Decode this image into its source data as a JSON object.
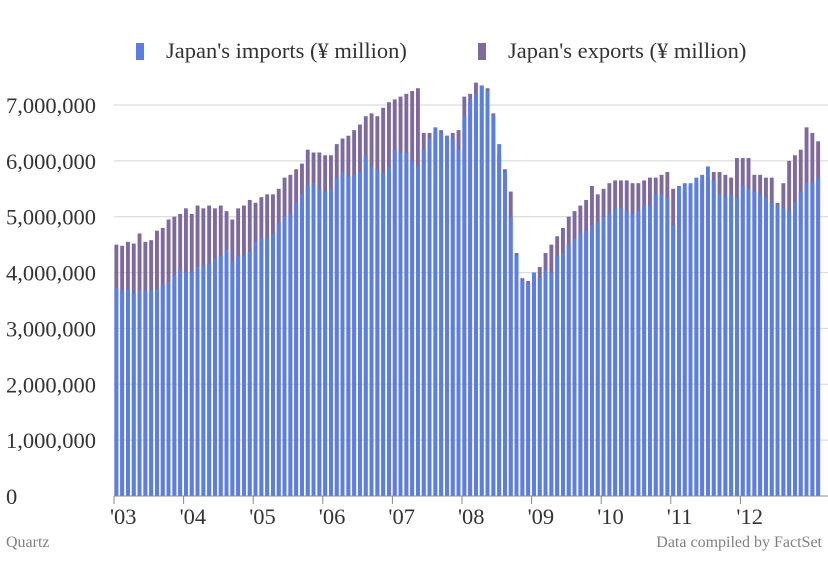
{
  "colors": {
    "imports": "#5B7FE0",
    "exports": "#7F6A9C",
    "grid": "#d4d4d4",
    "axis_text": "#333333"
  },
  "source_left": "Quartz",
  "source_right": "Data compiled by FactSet",
  "chart_data": {
    "type": "bar",
    "title": "",
    "xlabel": "",
    "ylabel": "",
    "ylim": [
      0,
      7000000
    ],
    "grid": true,
    "legend_position": "top",
    "y_ticks": [
      "0",
      "1,000,000",
      "2,000,000",
      "3,000,000",
      "4,000,000",
      "5,000,000",
      "6,000,000",
      "7,000,000"
    ],
    "x_ticks": [
      "'03",
      "'04",
      "'05",
      "'06",
      "'07",
      "'08",
      "'09",
      "'10",
      "'11",
      "'12"
    ],
    "x_start": "2003-01",
    "x_end": "2012-10",
    "series": [
      {
        "name": "Japan's imports (¥ million)",
        "values": [
          3730000,
          3680000,
          3700000,
          3620000,
          3680000,
          3670000,
          3680000,
          3700000,
          3780000,
          3830000,
          3950000,
          4050000,
          4000000,
          4020000,
          4100000,
          4130000,
          4150000,
          4250000,
          4300000,
          4420000,
          4180000,
          4300000,
          4290000,
          4370000,
          4550000,
          4600000,
          4620000,
          4700000,
          4900000,
          5000000,
          5050000,
          5250000,
          5400000,
          5550000,
          5600000,
          5500000,
          5450000,
          5500000,
          5700000,
          5800000,
          5720000,
          5750000,
          5800000,
          6100000,
          5900000,
          5850000,
          5780000,
          5900000,
          6200000,
          6150000,
          6150000,
          6000000,
          5900000,
          6200000,
          6400000,
          6600000,
          6500000,
          6450000,
          6400000,
          6200000,
          6800000,
          7100000,
          7200000,
          7350000,
          7250000,
          6800000,
          6300000,
          5800000,
          5000000,
          4300000,
          3850000,
          3800000,
          4000000,
          3900000,
          4050000,
          4000000,
          4300000,
          4350000,
          4500000,
          4600000,
          4700000,
          4750000,
          4850000,
          4900000,
          5000000,
          5050000,
          5150000,
          5150000,
          5100000,
          5050000,
          5100000,
          5200000,
          5200000,
          5400000,
          5400000,
          5350000,
          4850000,
          5550000,
          5600000,
          5600000,
          5700000,
          5750000,
          5900000,
          5650000,
          5400000,
          5350000,
          5400000,
          5350000,
          5550000,
          5500000,
          5450000,
          5400000,
          5350000,
          5250000,
          5200000,
          5150000,
          5100000,
          5250000,
          5450000,
          5600000,
          5600000,
          5700000
        ]
      },
      {
        "name": "Japan's exports (¥ million)",
        "values": [
          4500000,
          4480000,
          4550000,
          4520000,
          4700000,
          4550000,
          4580000,
          4750000,
          4800000,
          4950000,
          5000000,
          5050000,
          5150000,
          5050000,
          5200000,
          5150000,
          5200000,
          5150000,
          5200000,
          5100000,
          4950000,
          5150000,
          5200000,
          5300000,
          5250000,
          5350000,
          5400000,
          5400000,
          5500000,
          5700000,
          5750000,
          5850000,
          5950000,
          6200000,
          6150000,
          6150000,
          6100000,
          6100000,
          6300000,
          6400000,
          6450000,
          6550000,
          6650000,
          6800000,
          6850000,
          6800000,
          6950000,
          7050000,
          7100000,
          7150000,
          7200000,
          7250000,
          7300000,
          6500000,
          6500000,
          6500000,
          6550000,
          6450000,
          6500000,
          6550000,
          7150000,
          7200000,
          7400000,
          7350000,
          7300000,
          6850000,
          6100000,
          5850000,
          5450000,
          4350000,
          3900000,
          3850000,
          4000000,
          4100000,
          4350000,
          4500000,
          4650000,
          4800000,
          5000000,
          5100000,
          5200000,
          5300000,
          5550000,
          5400000,
          5500000,
          5600000,
          5650000,
          5650000,
          5650000,
          5600000,
          5600000,
          5650000,
          5700000,
          5700000,
          5750000,
          5800000,
          5500000,
          5400000,
          5450000,
          5550000,
          5600000,
          5650000,
          5700000,
          5800000,
          5800000,
          5750000,
          5700000,
          6050000,
          6050000,
          6050000,
          5750000,
          5750000,
          5700000,
          5700000,
          5250000,
          5600000,
          6000000,
          6100000,
          6200000,
          6600000,
          6500000,
          6350000
        ]
      }
    ]
  }
}
